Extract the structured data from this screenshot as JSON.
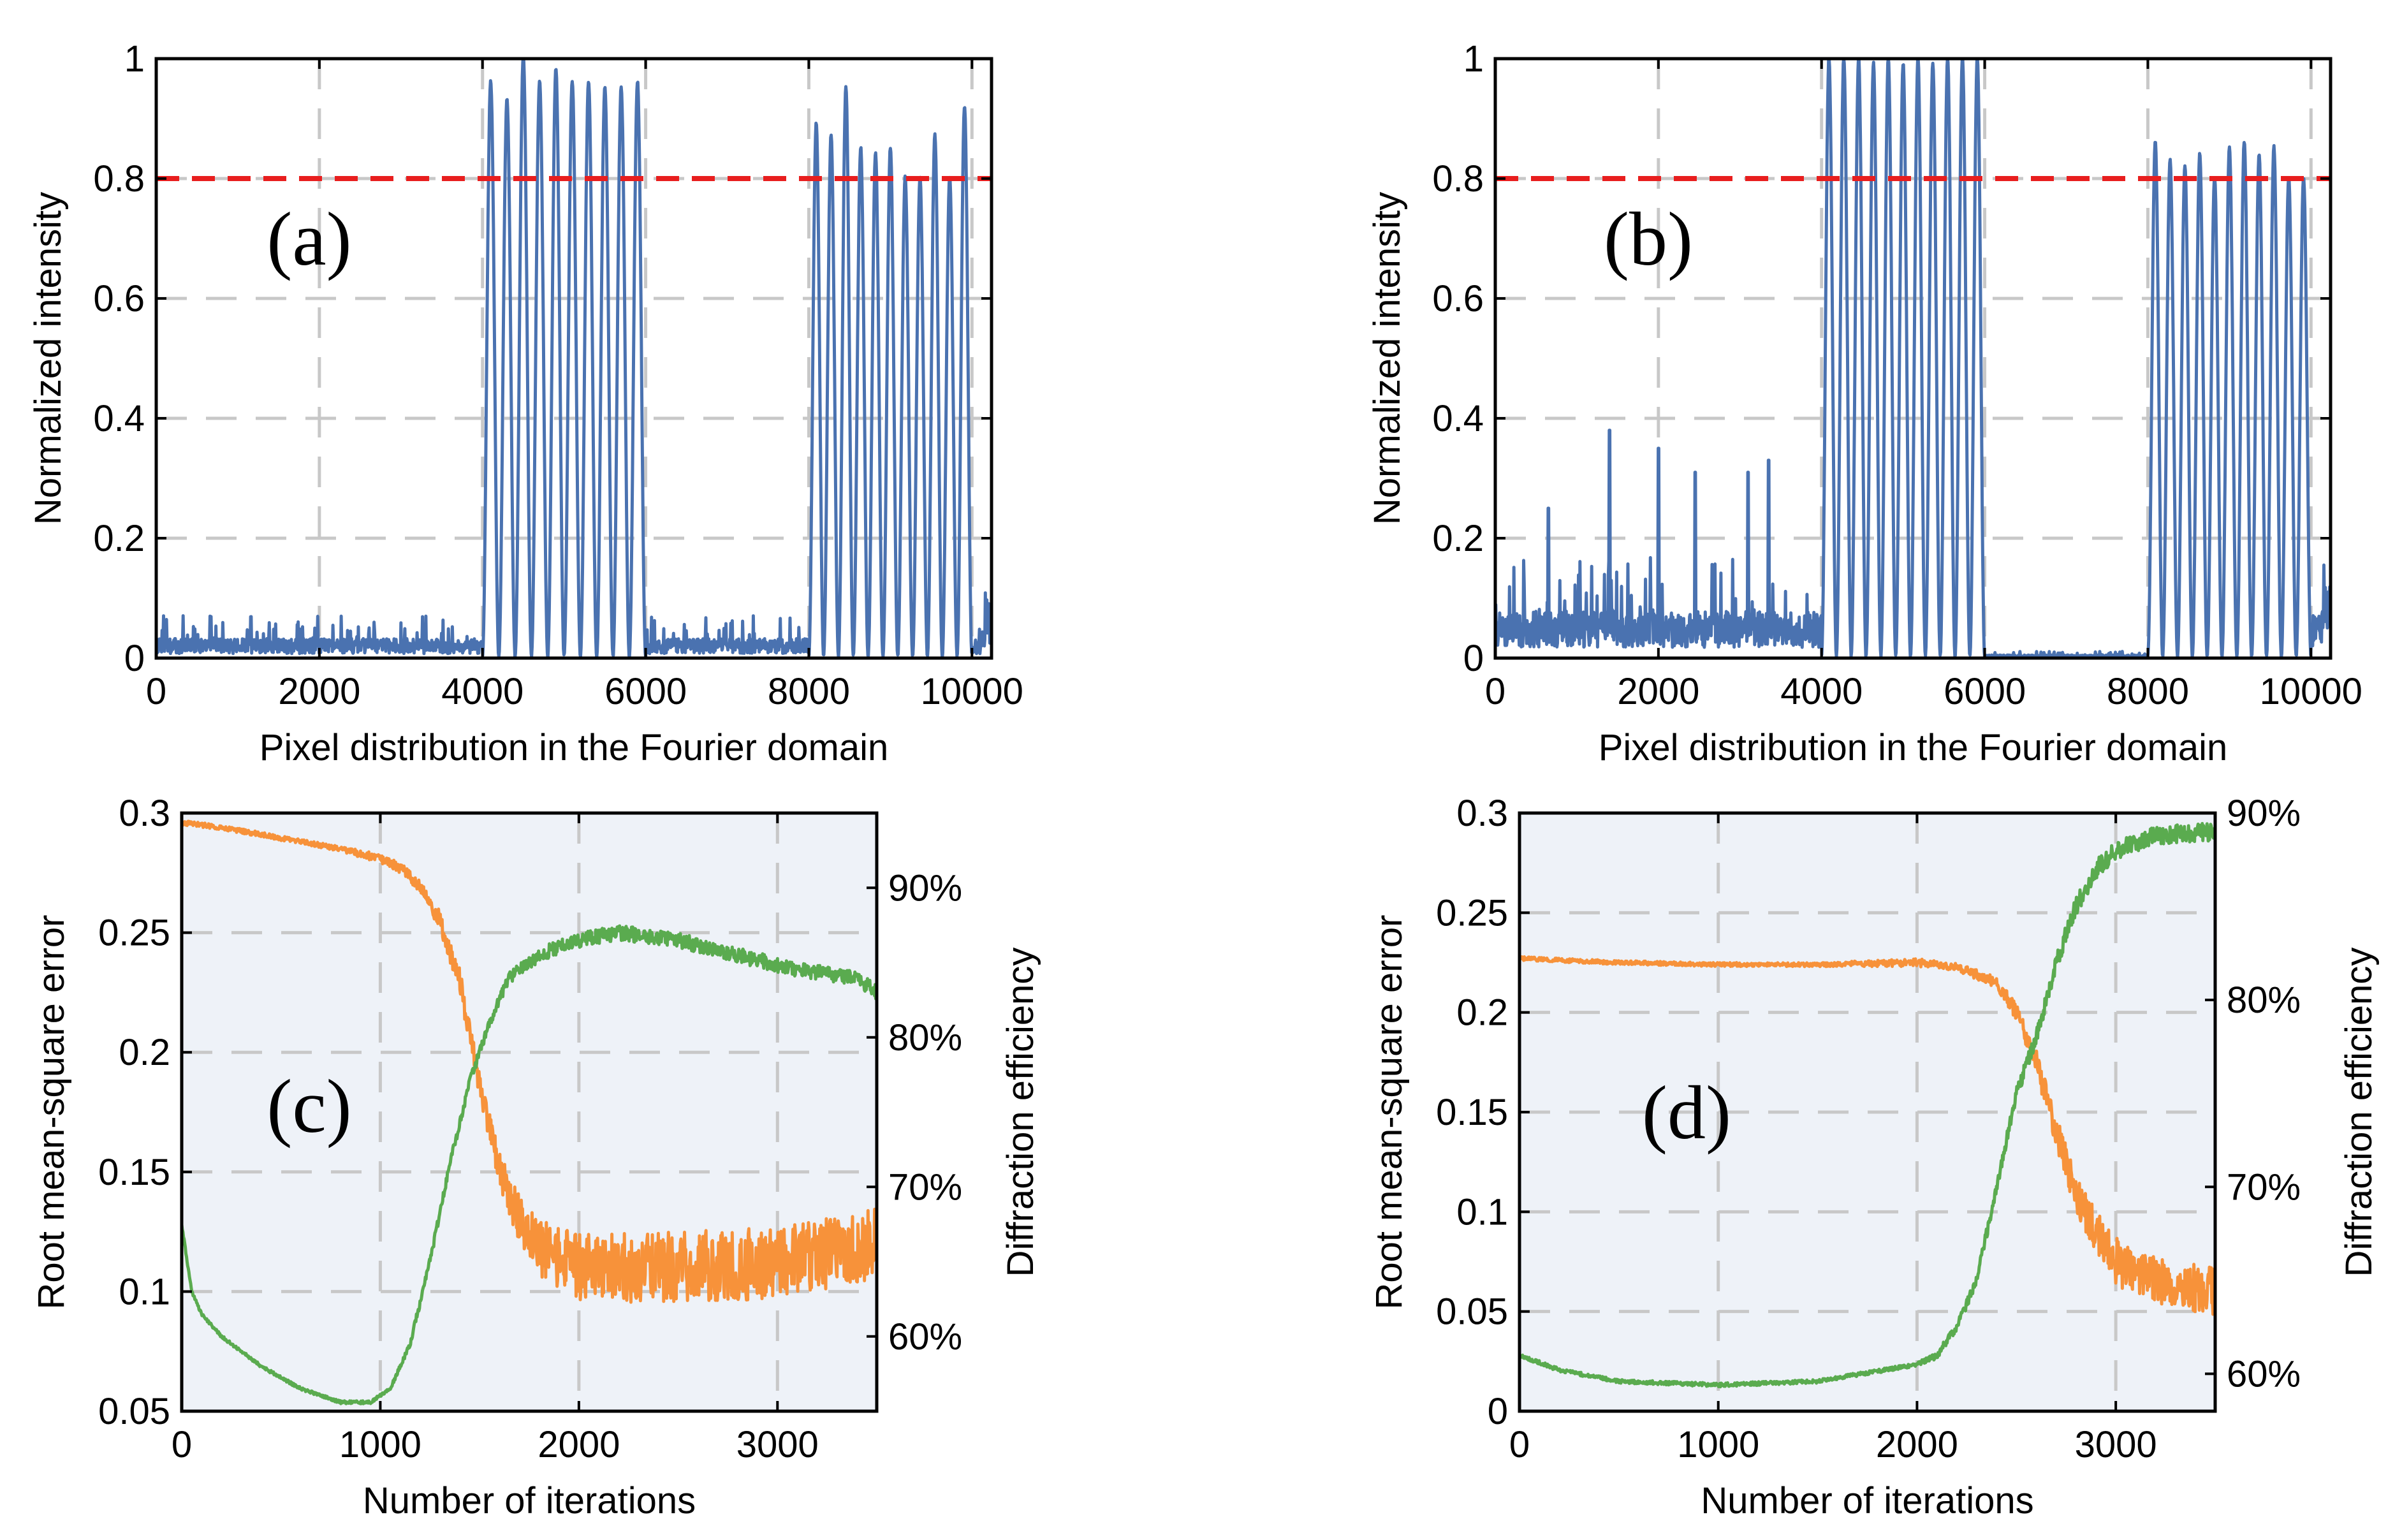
{
  "colors": {
    "intensity": "#4a72b0",
    "threshold": "#e81e1e",
    "rmse": "#f7923a",
    "efficiency": "#5aab4f",
    "panel_bg_cd": "#eef2f8",
    "grid": "#c8c8c8"
  },
  "chart_data": [
    {
      "id": "a",
      "type": "line",
      "panel_label": "(a)",
      "xlabel": "Pixel distribution in the Fourier domain",
      "ylabel": "Normalized intensity",
      "xlim": [
        0,
        10240
      ],
      "ylim": [
        0,
        1
      ],
      "xticks": [
        0,
        2000,
        4000,
        6000,
        8000,
        10000
      ],
      "xtick_labels": [
        "0",
        "2000",
        "4000",
        "6000",
        "8000",
        "10000"
      ],
      "yticks": [
        0,
        0.2,
        0.4,
        0.6,
        0.8,
        1
      ],
      "ytick_labels": [
        "0",
        "0.2",
        "0.4",
        "0.6",
        "0.8",
        "1"
      ],
      "grid": true,
      "threshold": 0.8,
      "noise_baseline": 0.025,
      "bands": [
        {
          "start": 4000,
          "end": 6000,
          "peak_count": 10,
          "peaks": [
            0.96,
            0.93,
            1.0,
            0.96,
            0.98,
            0.96,
            0.96,
            0.95,
            0.95,
            0.96
          ]
        },
        {
          "start": 8000,
          "end": 10000,
          "peak_count": 11,
          "peaks": [
            0.89,
            0.87,
            0.95,
            0.85,
            0.84,
            0.85,
            0.8,
            0.8,
            0.87,
            0.8,
            0.92
          ]
        }
      ],
      "tail_value": 0.11
    },
    {
      "id": "b",
      "type": "line",
      "panel_label": "(b)",
      "xlabel": "Pixel distribution in the Fourier domain",
      "ylabel": "Normalized intensity",
      "xlim": [
        0,
        10240
      ],
      "ylim": [
        0,
        1
      ],
      "xticks": [
        0,
        2000,
        4000,
        6000,
        8000,
        10000
      ],
      "xtick_labels": [
        "0",
        "2000",
        "4000",
        "6000",
        "8000",
        "10000"
      ],
      "yticks": [
        0,
        0.2,
        0.4,
        0.6,
        0.8,
        1
      ],
      "ytick_labels": [
        "0",
        "0.2",
        "0.4",
        "0.6",
        "0.8",
        "1"
      ],
      "grid": true,
      "threshold": 0.8,
      "noise_baseline": 0.06,
      "noise_spikes": [
        [
          650,
          0.25
        ],
        [
          1400,
          0.38
        ],
        [
          2000,
          0.35
        ],
        [
          2450,
          0.31
        ],
        [
          3100,
          0.31
        ],
        [
          3350,
          0.33
        ]
      ],
      "bands": [
        {
          "start": 4000,
          "end": 6000,
          "peak_count": 11,
          "peaks": [
            1.0,
            1.0,
            1.0,
            0.99,
            1.0,
            0.99,
            1.0,
            0.99,
            1.0,
            1.0,
            1.0
          ]
        },
        {
          "start": 8000,
          "end": 10000,
          "peak_count": 11,
          "peaks": [
            0.86,
            0.83,
            0.82,
            0.84,
            0.8,
            0.85,
            0.86,
            0.84,
            0.85,
            0.8,
            0.8
          ]
        }
      ],
      "tail_value": 0.12
    },
    {
      "id": "c",
      "type": "line",
      "panel_label": "(c)",
      "xlabel": "Number of iterations",
      "ylabel": "Root mean-square error",
      "y2label": "Diffraction efficiency",
      "xlim": [
        0,
        3500
      ],
      "ylim": [
        0.05,
        0.3
      ],
      "y2lim": [
        55,
        95
      ],
      "xticks": [
        0,
        1000,
        2000,
        3000
      ],
      "xtick_labels": [
        "0",
        "1000",
        "2000",
        "3000"
      ],
      "yticks": [
        0.05,
        0.1,
        0.15,
        0.2,
        0.25,
        0.3
      ],
      "ytick_labels": [
        "0.05",
        "0.1",
        "0.15",
        "0.2",
        "0.25",
        "0.3"
      ],
      "y2ticks": [
        60,
        70,
        80,
        90
      ],
      "y2tick_labels": [
        "60%",
        "70%",
        "80%",
        "90%"
      ],
      "grid": true,
      "series": [
        {
          "axis": "left",
          "color_key": "rmse",
          "x": [
            0,
            200,
            400,
            600,
            800,
            1000,
            1100,
            1200,
            1300,
            1400,
            1500,
            1600,
            1700,
            1800,
            2000,
            2500,
            3000,
            3500
          ],
          "y": [
            0.296,
            0.294,
            0.291,
            0.288,
            0.285,
            0.281,
            0.277,
            0.27,
            0.255,
            0.23,
            0.185,
            0.15,
            0.13,
            0.118,
            0.11,
            0.11,
            0.112,
            0.12
          ],
          "noise": [
            0.001,
            0.001,
            0.001,
            0.001,
            0.001,
            0.002,
            0.002,
            0.003,
            0.004,
            0.005,
            0.006,
            0.008,
            0.01,
            0.012,
            0.014,
            0.015,
            0.015,
            0.015
          ]
        },
        {
          "axis": "right",
          "color_key": "efficiency",
          "x": [
            0,
            50,
            100,
            200,
            400,
            600,
            800,
            950,
            1050,
            1150,
            1250,
            1350,
            1450,
            1550,
            1650,
            1800,
            2000,
            2200,
            2500,
            2800,
            3100,
            3400,
            3500
          ],
          "y": [
            67.5,
            63.0,
            61.5,
            60.0,
            58.0,
            56.5,
            55.6,
            55.6,
            56.5,
            59.5,
            65.0,
            71.5,
            77.0,
            81.0,
            84.0,
            85.5,
            86.5,
            87.0,
            86.5,
            85.5,
            84.5,
            84.0,
            83.0
          ],
          "noise": [
            0.1,
            0.1,
            0.1,
            0.1,
            0.1,
            0.1,
            0.1,
            0.1,
            0.1,
            0.2,
            0.3,
            0.3,
            0.3,
            0.3,
            0.4,
            0.5,
            0.5,
            0.5,
            0.5,
            0.5,
            0.5,
            0.5,
            0.5
          ]
        }
      ]
    },
    {
      "id": "d",
      "type": "line",
      "panel_label": "(d)",
      "xlabel": "Number of iterations",
      "ylabel": "Root mean-square error",
      "y2label": "Diffraction efficiency",
      "xlim": [
        0,
        3500
      ],
      "ylim": [
        0,
        0.3
      ],
      "y2lim": [
        58,
        90
      ],
      "xticks": [
        0,
        1000,
        2000,
        3000
      ],
      "xtick_labels": [
        "0",
        "1000",
        "2000",
        "3000"
      ],
      "yticks": [
        0,
        0.05,
        0.1,
        0.15,
        0.2,
        0.25,
        0.3
      ],
      "ytick_labels": [
        "0",
        "0.05",
        "0.1",
        "0.15",
        "0.2",
        "0.25",
        "0.3"
      ],
      "y2ticks": [
        60,
        70,
        80,
        90
      ],
      "y2tick_labels": [
        "60%",
        "70%",
        "80%",
        "90%"
      ],
      "grid": true,
      "series": [
        {
          "axis": "left",
          "color_key": "rmse",
          "x": [
            0,
            500,
            1000,
            1500,
            2000,
            2200,
            2400,
            2500,
            2600,
            2700,
            2800,
            2900,
            3000,
            3200,
            3500
          ],
          "y": [
            0.227,
            0.225,
            0.224,
            0.224,
            0.225,
            0.223,
            0.215,
            0.2,
            0.175,
            0.14,
            0.11,
            0.09,
            0.075,
            0.065,
            0.06
          ],
          "noise": [
            0.001,
            0.001,
            0.001,
            0.001,
            0.002,
            0.002,
            0.003,
            0.004,
            0.006,
            0.008,
            0.01,
            0.011,
            0.012,
            0.012,
            0.012
          ]
        },
        {
          "axis": "right",
          "color_key": "efficiency",
          "x": [
            0,
            200,
            500,
            1000,
            1500,
            2000,
            2100,
            2200,
            2300,
            2400,
            2500,
            2600,
            2700,
            2800,
            2900,
            3000,
            3200,
            3500
          ],
          "y": [
            61.0,
            60.2,
            59.6,
            59.4,
            59.6,
            60.5,
            61.0,
            62.5,
            65.0,
            70.0,
            75.0,
            78.0,
            82.0,
            85.0,
            87.0,
            88.0,
            88.8,
            89.0
          ],
          "noise": [
            0.1,
            0.1,
            0.1,
            0.1,
            0.1,
            0.1,
            0.2,
            0.2,
            0.3,
            0.3,
            0.4,
            0.4,
            0.5,
            0.5,
            0.5,
            0.5,
            0.5,
            0.5
          ]
        }
      ]
    }
  ]
}
